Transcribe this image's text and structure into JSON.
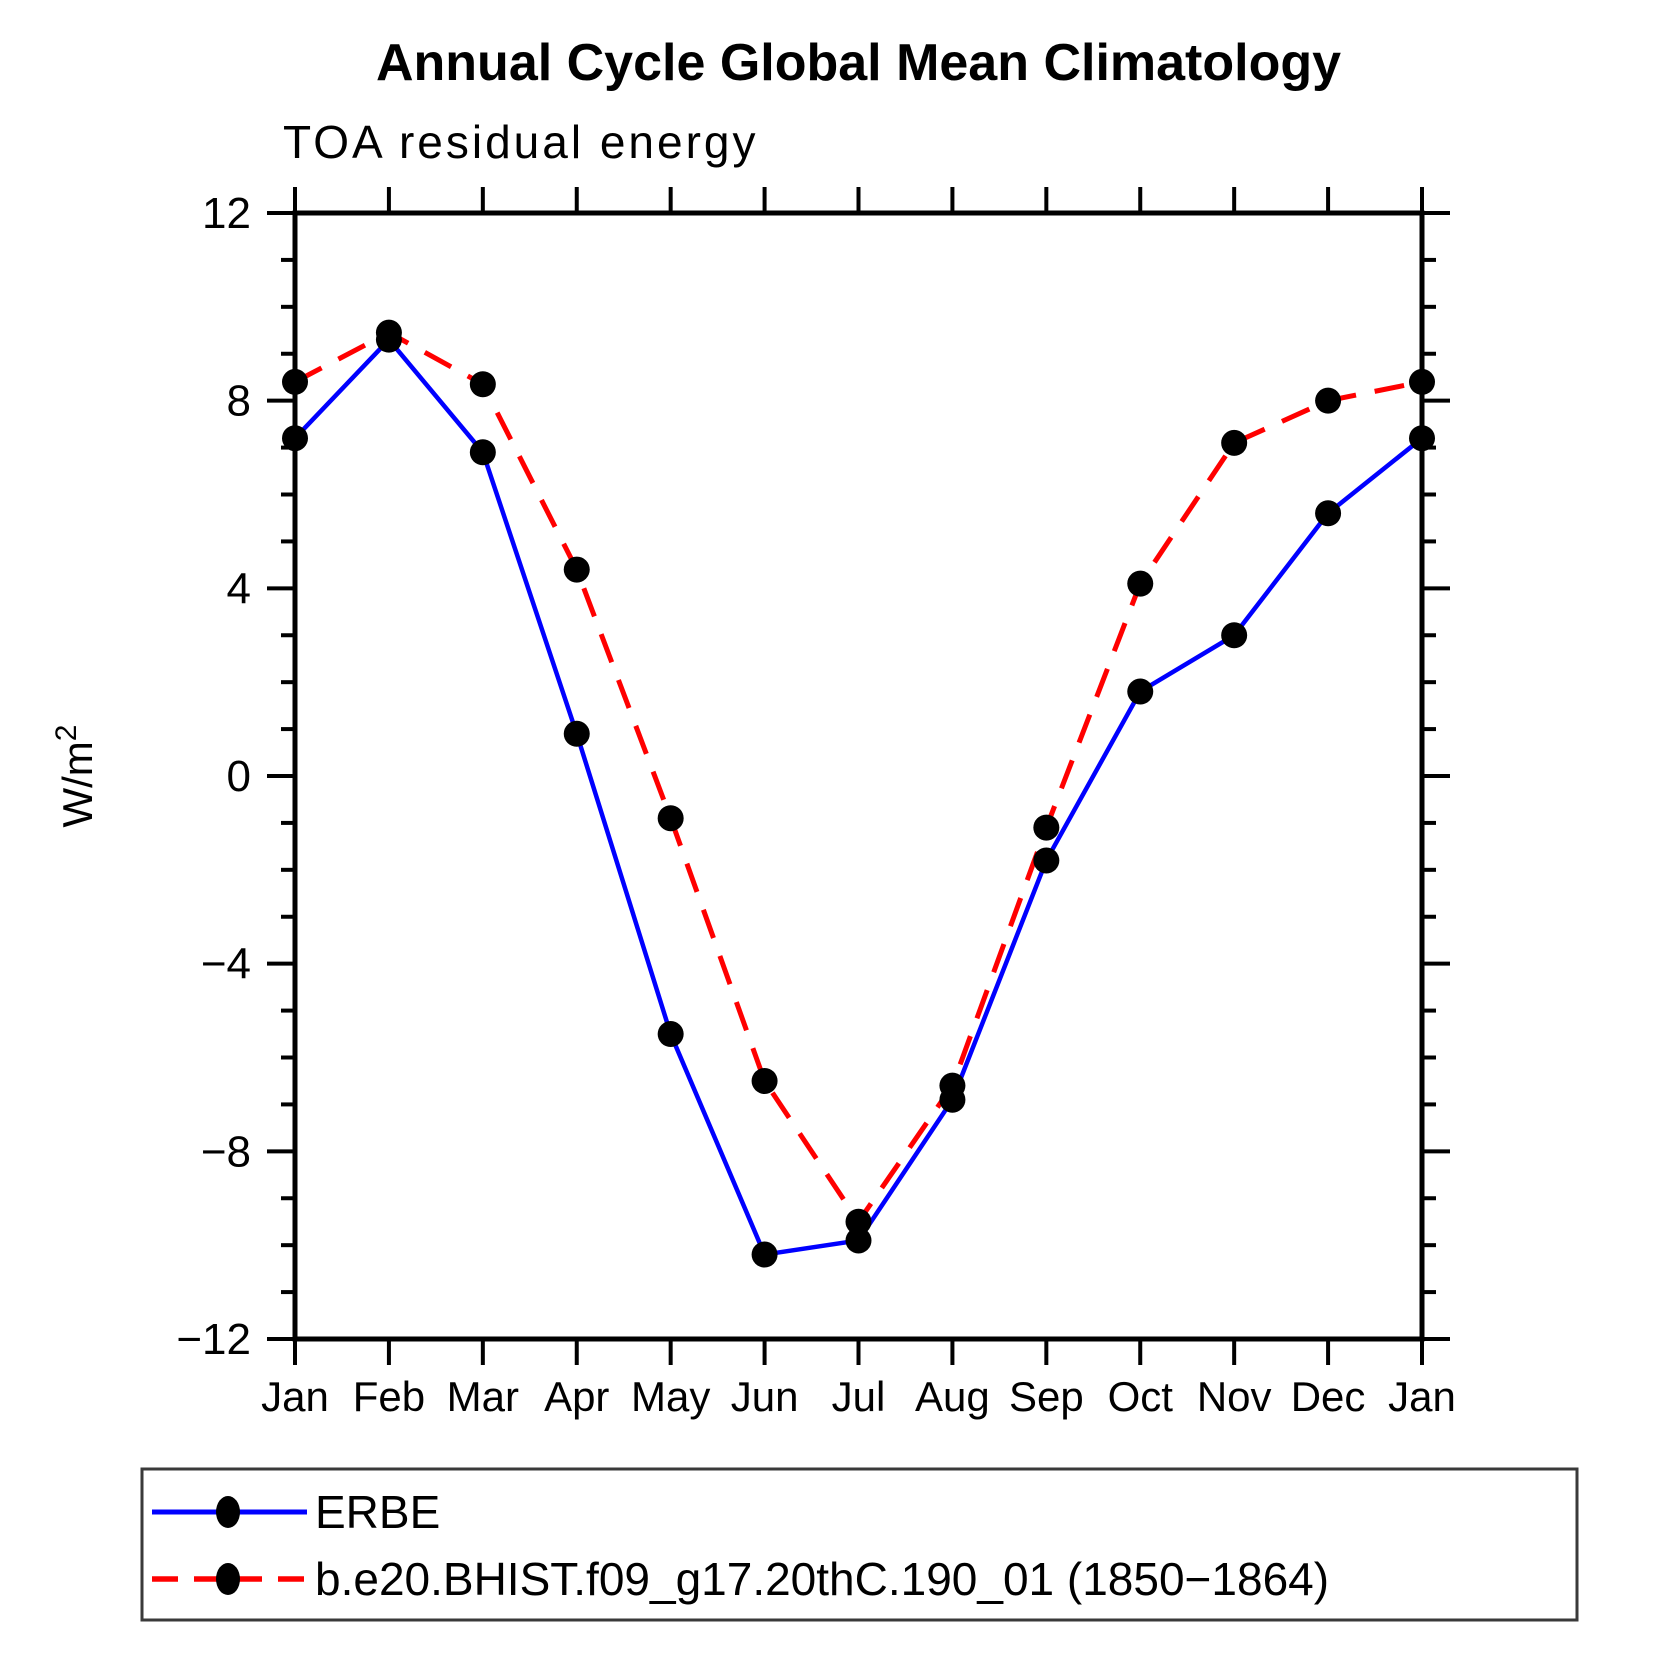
{
  "chart_data": {
    "type": "line",
    "title": "Annual Cycle Global Mean Climatology",
    "subtitle": "TOA residual energy",
    "ylabel": "W/m",
    "ylabel_superscript": "2",
    "categories": [
      "Jan",
      "Feb",
      "Mar",
      "Apr",
      "May",
      "Jun",
      "Jul",
      "Aug",
      "Sep",
      "Oct",
      "Nov",
      "Dec",
      "Jan"
    ],
    "ylim": [
      -12,
      12
    ],
    "y_major_ticks": [
      12,
      8,
      4,
      0,
      -4,
      -8,
      -12
    ],
    "y_tick_labels": [
      "12",
      "8",
      "4",
      "0",
      "−4",
      "−8",
      "−12"
    ],
    "y_minor_step": 1,
    "grid": false,
    "legend_position": "bottom-left-box",
    "marker": "filled-circle",
    "marker_color": "#000000",
    "frame_color": "#000000",
    "legend_border_color": "#3a3a3a",
    "series": [
      {
        "name": "ERBE",
        "color": "#0000ff",
        "style": "solid",
        "values": [
          7.2,
          9.3,
          6.9,
          0.9,
          -5.5,
          -10.2,
          -9.9,
          -6.9,
          -1.8,
          1.8,
          3.0,
          5.6,
          7.2
        ]
      },
      {
        "name": "b.e20.BHIST.f09_g17.20thC.190_01 (1850−1864)",
        "color": "#ff0000",
        "style": "dashed",
        "values": [
          8.4,
          9.45,
          8.35,
          4.4,
          -0.9,
          -6.5,
          -9.5,
          -6.6,
          -1.1,
          4.1,
          7.1,
          8.0,
          8.4
        ]
      }
    ]
  }
}
